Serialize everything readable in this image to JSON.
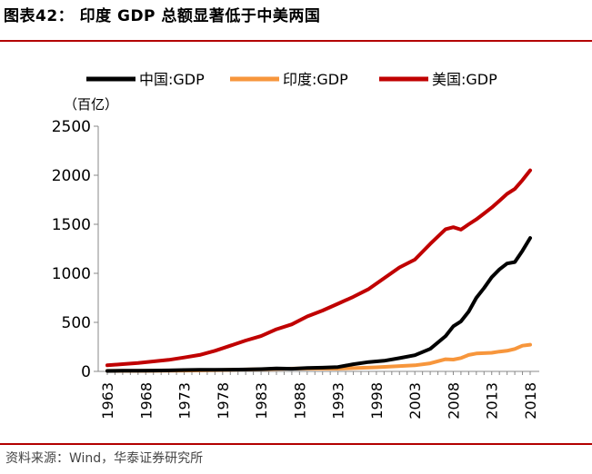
{
  "figure_title": "图表42：   印度 GDP 总额显著低于中美两国",
  "source_note": "资料来源：Wind，华泰证券研究所",
  "colors": {
    "china": "#000000",
    "india": "#f7963c",
    "usa": "#c00000",
    "rule": "#b30000"
  },
  "chart_data": {
    "type": "line",
    "title": "",
    "xlabel": "",
    "ylabel": "（百亿）",
    "ylim": [
      0,
      2500
    ],
    "yticks": [
      0,
      500,
      1000,
      1500,
      2000,
      2500
    ],
    "xlim": [
      1963,
      2018
    ],
    "xticks": [
      "1963",
      "1968",
      "1973",
      "1978",
      "1983",
      "1988",
      "1993",
      "1998",
      "2003",
      "2008",
      "2013",
      "2018"
    ],
    "grid": false,
    "legend_position": "top",
    "series": [
      {
        "name": "中国:GDP",
        "color": "#000000",
        "x": [
          1963,
          1965,
          1967,
          1969,
          1971,
          1973,
          1975,
          1977,
          1979,
          1981,
          1983,
          1985,
          1987,
          1989,
          1991,
          1993,
          1995,
          1997,
          1999,
          2001,
          2003,
          2005,
          2007,
          2008,
          2009,
          2010,
          2011,
          2012,
          2013,
          2014,
          2015,
          2016,
          2017,
          2018
        ],
        "y": [
          5,
          7,
          7,
          8,
          10,
          14,
          16,
          17,
          18,
          19,
          23,
          30,
          27,
          34,
          38,
          44,
          73,
          95,
          108,
          135,
          165,
          230,
          360,
          460,
          510,
          610,
          750,
          850,
          960,
          1040,
          1100,
          1115,
          1230,
          1360
        ]
      },
      {
        "name": "印度:GDP",
        "color": "#f7963c",
        "x": [
          1963,
          1968,
          1973,
          1978,
          1983,
          1988,
          1993,
          1998,
          2003,
          2005,
          2007,
          2008,
          2009,
          2010,
          2011,
          2012,
          2013,
          2014,
          2015,
          2016,
          2017,
          2018
        ],
        "y": [
          6,
          6,
          8,
          14,
          22,
          30,
          28,
          42,
          62,
          82,
          124,
          120,
          136,
          168,
          182,
          186,
          190,
          202,
          210,
          229,
          262,
          272
        ]
      },
      {
        "name": "美国:GDP",
        "color": "#c00000",
        "x": [
          1963,
          1965,
          1967,
          1969,
          1971,
          1973,
          1975,
          1977,
          1979,
          1981,
          1983,
          1985,
          1987,
          1989,
          1991,
          1993,
          1995,
          1997,
          1999,
          2001,
          2003,
          2005,
          2007,
          2008,
          2009,
          2010,
          2011,
          2012,
          2013,
          2014,
          2015,
          2016,
          2017,
          2018
        ],
        "y": [
          62,
          74,
          86,
          102,
          118,
          142,
          168,
          210,
          262,
          315,
          360,
          430,
          480,
          560,
          620,
          690,
          760,
          840,
          950,
          1060,
          1140,
          1300,
          1450,
          1470,
          1445,
          1500,
          1550,
          1610,
          1670,
          1740,
          1810,
          1860,
          1950,
          2050
        ]
      }
    ]
  }
}
